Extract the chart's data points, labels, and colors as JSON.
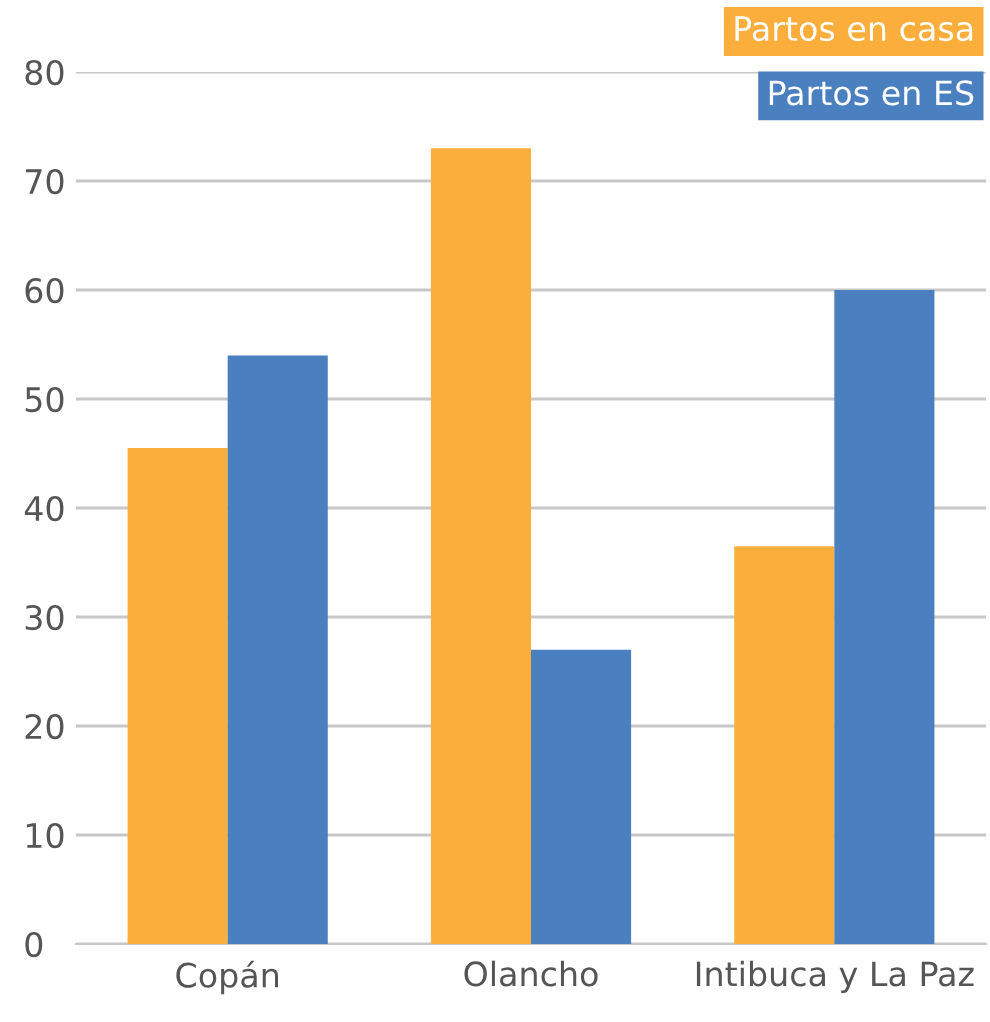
{
  "chart_data": {
    "type": "bar",
    "categories": [
      "Copán",
      "Olancho",
      "Intibuca y La Paz"
    ],
    "series": [
      {
        "name": "Partos en casa",
        "color": "#fbae3c",
        "values": [
          45.5,
          73,
          36.5
        ]
      },
      {
        "name": "Partos en ES",
        "color": "#4a80c0",
        "values": [
          54,
          27,
          60
        ]
      }
    ],
    "ylim": [
      0,
      80
    ],
    "yticks": [
      0,
      10,
      20,
      30,
      40,
      50,
      60,
      70,
      80
    ],
    "grid": "y",
    "legend": "top right"
  }
}
